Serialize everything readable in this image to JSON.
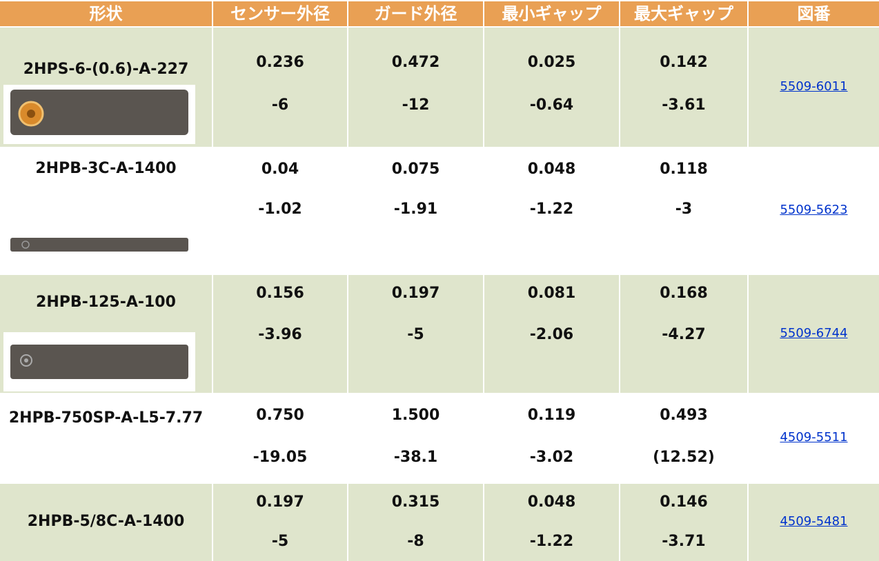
{
  "table": {
    "header": [
      "形状",
      "センサー外径",
      "ガード外径",
      "最小ギャップ",
      "最大ギャップ",
      "図番"
    ],
    "rows": [
      {
        "name": "2HPS-6-(0.6)-A-227",
        "values": [
          [
            "0.236",
            "-6"
          ],
          [
            "0.472",
            "-12"
          ],
          [
            "0.025",
            "-0.64"
          ],
          [
            "0.142",
            "-3.61"
          ]
        ],
        "drawing": "5509-6011"
      },
      {
        "name": "2HPB-3C-A-1400",
        "values": [
          [
            "0.04",
            "-1.02"
          ],
          [
            "0.075",
            "-1.91"
          ],
          [
            "0.048",
            "-1.22"
          ],
          [
            "0.118",
            "-3"
          ]
        ],
        "drawing": "5509-5623"
      },
      {
        "name": "2HPB-125-A-100",
        "values": [
          [
            "0.156",
            "-3.96"
          ],
          [
            "0.197",
            "-5"
          ],
          [
            "0.081",
            "-2.06"
          ],
          [
            "0.168",
            "-4.27"
          ]
        ],
        "drawing": "5509-6744"
      },
      {
        "name": "2HPB-750SP-A-L5-7.77",
        "values": [
          [
            "0.750",
            "-19.05"
          ],
          [
            "1.500",
            "-38.1"
          ],
          [
            "0.119",
            "-3.02"
          ],
          [
            "0.493",
            "(12.52)"
          ]
        ],
        "drawing": "4509-5511"
      },
      {
        "name": "2HPB-5/8C-A-1400",
        "values": [
          [
            "0.197",
            "-5"
          ],
          [
            "0.315",
            "-8"
          ],
          [
            "0.048",
            "-1.22"
          ],
          [
            "0.146",
            "-3.71"
          ]
        ],
        "drawing": "4509-5481"
      }
    ]
  }
}
